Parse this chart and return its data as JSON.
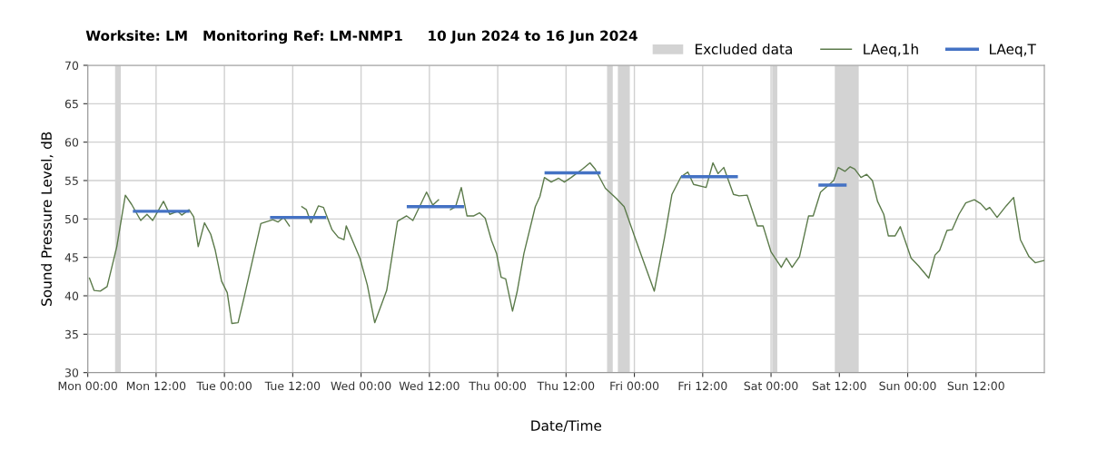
{
  "chart_data": {
    "type": "line",
    "title": "Worksite: LM   Monitoring Ref: LM-NMP1     10 Jun 2024 to 16 Jun 2024",
    "xlabel": "Date/Time",
    "ylabel": "Sound Pressure Level, dB",
    "xlim": [
      "2024-06-10T00:00",
      "2024-06-17T00:00"
    ],
    "xticks": [
      {
        "value": "2024-06-10T00:00",
        "label": "Mon 00:00"
      },
      {
        "value": "2024-06-10T12:00",
        "label": "Mon 12:00"
      },
      {
        "value": "2024-06-11T00:00",
        "label": "Tue 00:00"
      },
      {
        "value": "2024-06-11T12:00",
        "label": "Tue 12:00"
      },
      {
        "value": "2024-06-12T00:00",
        "label": "Wed 00:00"
      },
      {
        "value": "2024-06-12T12:00",
        "label": "Wed 12:00"
      },
      {
        "value": "2024-06-13T00:00",
        "label": "Thu 00:00"
      },
      {
        "value": "2024-06-13T12:00",
        "label": "Thu 12:00"
      },
      {
        "value": "2024-06-14T00:00",
        "label": "Fri 00:00"
      },
      {
        "value": "2024-06-14T12:00",
        "label": "Fri 12:00"
      },
      {
        "value": "2024-06-15T00:00",
        "label": "Sat 00:00"
      },
      {
        "value": "2024-06-15T12:00",
        "label": "Sat 12:00"
      },
      {
        "value": "2024-06-16T00:00",
        "label": "Sun 00:00"
      },
      {
        "value": "2024-06-16T12:00",
        "label": "Sun 12:00"
      }
    ],
    "ylim": [
      30,
      70
    ],
    "yticks": [
      30,
      35,
      40,
      45,
      50,
      55,
      60,
      65,
      70
    ],
    "grid": true,
    "legend": "top right",
    "marker": "none",
    "line_style": "solid",
    "bands": [
      {
        "axis": "x",
        "from": "2024-06-10T04:48",
        "to": "2024-06-10T05:48",
        "label": "Excluded data",
        "color": "#d3d3d3"
      },
      {
        "axis": "x",
        "from": "2024-06-13T19:12",
        "to": "2024-06-13T20:12",
        "color": "#d3d3d3"
      },
      {
        "axis": "x",
        "from": "2024-06-13T21:06",
        "to": "2024-06-13T23:12",
        "color": "#d3d3d3"
      },
      {
        "axis": "x",
        "from": "2024-06-15T00:12",
        "to": "2024-06-15T01:06",
        "color": "#d3d3d3"
      },
      {
        "axis": "x",
        "from": "2024-06-15T11:12",
        "to": "2024-06-15T15:24",
        "color": "#d3d3d3"
      }
    ],
    "series": [
      {
        "name": "LAeq,1h",
        "color": "#5b7a4a",
        "x": [
          "2024-06-10T00:18",
          "2024-06-10T01:06",
          "2024-06-10T02:12",
          "2024-06-10T03:24",
          "2024-06-10T05:06",
          "2024-06-10T06:36",
          "2024-06-10T07:42",
          "2024-06-10T09:18",
          "2024-06-10T10:24",
          "2024-06-10T11:24",
          "2024-06-10T13:18",
          "2024-06-10T14:24",
          "2024-06-10T15:48",
          "2024-06-10T16:30",
          "2024-06-10T17:48",
          "2024-06-10T18:36",
          "2024-06-10T19:24",
          "2024-06-10T20:30",
          "2024-06-10T21:36",
          "2024-06-10T22:24",
          "2024-06-10T23:30",
          "2024-06-11T00:30",
          "2024-06-11T01:18",
          "2024-06-11T02:24",
          "2024-06-11T03:24",
          "2024-06-11T06:24",
          "2024-06-11T08:30",
          "2024-06-11T09:24",
          "2024-06-11T10:24",
          "2024-06-11T11:24",
          "2024-06-11T12:30",
          "2024-06-11T13:36",
          "2024-06-11T14:24",
          "2024-06-11T15:12",
          "2024-06-11T16:30",
          "2024-06-11T17:24",
          "2024-06-11T18:54",
          "2024-06-11T20:00",
          "2024-06-11T21:00",
          "2024-06-11T21:24",
          "2024-06-11T23:48",
          "2024-06-12T01:06",
          "2024-06-12T02:24",
          "2024-06-12T04:30",
          "2024-06-12T06:24",
          "2024-06-12T08:00",
          "2024-06-12T09:06",
          "2024-06-12T10:36",
          "2024-06-12T11:30",
          "2024-06-12T12:36",
          "2024-06-12T13:36",
          "2024-06-12T14:36",
          "2024-06-12T15:42",
          "2024-06-12T16:36",
          "2024-06-12T17:36",
          "2024-06-12T18:36",
          "2024-06-12T19:48",
          "2024-06-12T20:48",
          "2024-06-12T21:48",
          "2024-06-12T22:54",
          "2024-06-12T23:48",
          "2024-06-13T00:36",
          "2024-06-13T01:24",
          "2024-06-13T02:36",
          "2024-06-13T03:24",
          "2024-06-13T04:36",
          "2024-06-13T06:36",
          "2024-06-13T07:24",
          "2024-06-13T08:12",
          "2024-06-13T09:24",
          "2024-06-13T10:42",
          "2024-06-13T11:42",
          "2024-06-13T12:54",
          "2024-06-13T14:54",
          "2024-06-13T16:12",
          "2024-06-13T17:06",
          "2024-06-13T18:54",
          "2024-06-13T20:48",
          "2024-06-13T22:12",
          "2024-06-14T00:00",
          "2024-06-14T01:24",
          "2024-06-14T03:30",
          "2024-06-14T05:18",
          "2024-06-14T06:36",
          "2024-06-14T08:12",
          "2024-06-14T09:24",
          "2024-06-14T10:24",
          "2024-06-14T12:36",
          "2024-06-14T13:48",
          "2024-06-14T14:42",
          "2024-06-14T15:42",
          "2024-06-14T17:24",
          "2024-06-14T18:24",
          "2024-06-14T19:48",
          "2024-06-14T21:36",
          "2024-06-14T22:36",
          "2024-06-15T00:00",
          "2024-06-15T01:48",
          "2024-06-15T02:42",
          "2024-06-15T03:42",
          "2024-06-15T05:00",
          "2024-06-15T06:36",
          "2024-06-15T07:24",
          "2024-06-15T08:42",
          "2024-06-15T11:00",
          "2024-06-15T11:48",
          "2024-06-15T13:00",
          "2024-06-15T13:54",
          "2024-06-15T14:42",
          "2024-06-15T15:48",
          "2024-06-15T16:48",
          "2024-06-15T17:48",
          "2024-06-15T18:42",
          "2024-06-15T19:48",
          "2024-06-15T20:36",
          "2024-06-15T21:48",
          "2024-06-15T22:42",
          "2024-06-16T00:36",
          "2024-06-16T01:54",
          "2024-06-16T03:42",
          "2024-06-16T04:48",
          "2024-06-16T05:36",
          "2024-06-16T06:54",
          "2024-06-16T07:48",
          "2024-06-16T09:00",
          "2024-06-16T10:12",
          "2024-06-16T11:42",
          "2024-06-16T12:48",
          "2024-06-16T13:48",
          "2024-06-16T14:24",
          "2024-06-16T15:42",
          "2024-06-16T17:18",
          "2024-06-16T18:36",
          "2024-06-16T19:48",
          "2024-06-16T21:18",
          "2024-06-16T22:24",
          "2024-06-17T00:00"
        ],
        "values": [
          42.3,
          40.7,
          40.6,
          41.2,
          46.4,
          53.1,
          51.9,
          49.8,
          50.6,
          49.8,
          52.3,
          50.6,
          51,
          50.5,
          51.2,
          50.3,
          46.4,
          49.5,
          48,
          45.9,
          41.9,
          40.4,
          36.4,
          36.5,
          39.6,
          49.4,
          49.9,
          49.6,
          50.2,
          49.1,
          null,
          51.6,
          51.2,
          49.5,
          51.7,
          51.5,
          48.6,
          47.6,
          47.3,
          49.1,
          44.9,
          41.4,
          36.5,
          40.7,
          49.7,
          50.4,
          49.8,
          52.1,
          53.5,
          51.8,
          52.5,
          null,
          51.2,
          51.6,
          54.1,
          50.4,
          50.4,
          50.8,
          50.1,
          47.2,
          45.5,
          42.4,
          42.2,
          38,
          40.5,
          45.5,
          51.6,
          52.9,
          55.4,
          54.8,
          55.3,
          54.8,
          55.4,
          56.5,
          57.3,
          56.5,
          54,
          52.7,
          51.6,
          47.8,
          44.9,
          40.6,
          47.6,
          53.2,
          55.5,
          56.1,
          54.5,
          54.1,
          57.3,
          55.9,
          56.7,
          53.2,
          53,
          53.1,
          49.1,
          49.1,
          45.7,
          43.7,
          44.9,
          43.7,
          45.1,
          50.4,
          50.4,
          53.5,
          55,
          56.7,
          56.2,
          56.8,
          56.5,
          55.4,
          55.8,
          55,
          52.3,
          50.6,
          47.8,
          47.8,
          49,
          44.9,
          43.9,
          42.3,
          45.3,
          45.9,
          48.5,
          48.6,
          50.6,
          52.1,
          52.5,
          52,
          51.2,
          51.5,
          50.2,
          51.7,
          52.8,
          47.3,
          45.1,
          44.3,
          44.6
        ]
      },
      {
        "name": "LAeq,T",
        "color": "#4472c4",
        "x": [
          "2024-06-10T08:12",
          "2024-06-10T17:36",
          "2024-06-11T01:00",
          "2024-06-11T08:18",
          "2024-06-11T17:36",
          "2024-06-12T01:00",
          "2024-06-12T08:18",
          "2024-06-12T17:48",
          "2024-06-13T01:00",
          "2024-06-13T08:30",
          "2024-06-13T17:48",
          "2024-06-14T01:00",
          "2024-06-14T08:30",
          "2024-06-14T17:54",
          "2024-06-15T01:00",
          "2024-06-15T08:36",
          "2024-06-15T13:00"
        ],
        "values": [
          51,
          51,
          null,
          50.2,
          50.2,
          null,
          51.6,
          51.6,
          null,
          56,
          56,
          null,
          55.5,
          55.5,
          null,
          54.4,
          54.4
        ]
      }
    ]
  }
}
